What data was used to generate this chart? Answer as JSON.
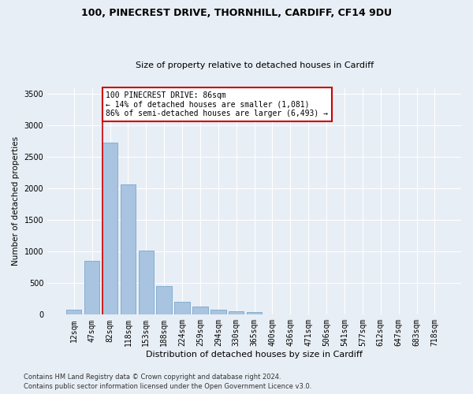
{
  "title_line1": "100, PINECREST DRIVE, THORNHILL, CARDIFF, CF14 9DU",
  "title_line2": "Size of property relative to detached houses in Cardiff",
  "xlabel": "Distribution of detached houses by size in Cardiff",
  "ylabel": "Number of detached properties",
  "footer_line1": "Contains HM Land Registry data © Crown copyright and database right 2024.",
  "footer_line2": "Contains public sector information licensed under the Open Government Licence v3.0.",
  "categories": [
    "12sqm",
    "47sqm",
    "82sqm",
    "118sqm",
    "153sqm",
    "188sqm",
    "224sqm",
    "259sqm",
    "294sqm",
    "330sqm",
    "365sqm",
    "400sqm",
    "436sqm",
    "471sqm",
    "506sqm",
    "541sqm",
    "577sqm",
    "612sqm",
    "647sqm",
    "683sqm",
    "718sqm"
  ],
  "values": [
    75,
    850,
    2720,
    2060,
    1010,
    450,
    200,
    130,
    75,
    60,
    45,
    10,
    5,
    5,
    0,
    0,
    0,
    0,
    0,
    0,
    0
  ],
  "bar_color": "#a8c4e0",
  "bar_edge_color": "#7ba7cc",
  "background_color": "#e8eef5",
  "plot_bg_color": "#e8eef5",
  "grid_color": "#ffffff",
  "vline_x": 1.575,
  "vline_color": "#cc0000",
  "annotation_text": "100 PINECREST DRIVE: 86sqm\n← 14% of detached houses are smaller (1,081)\n86% of semi-detached houses are larger (6,493) →",
  "annotation_box_color": "#ffffff",
  "annotation_box_edge": "#cc0000",
  "ylim": [
    0,
    3600
  ],
  "yticks": [
    0,
    500,
    1000,
    1500,
    2000,
    2500,
    3000,
    3500
  ],
  "title1_fontsize": 9,
  "title2_fontsize": 8,
  "xlabel_fontsize": 8,
  "ylabel_fontsize": 7.5,
  "tick_fontsize": 7,
  "annotation_fontsize": 7,
  "footer_fontsize": 6
}
